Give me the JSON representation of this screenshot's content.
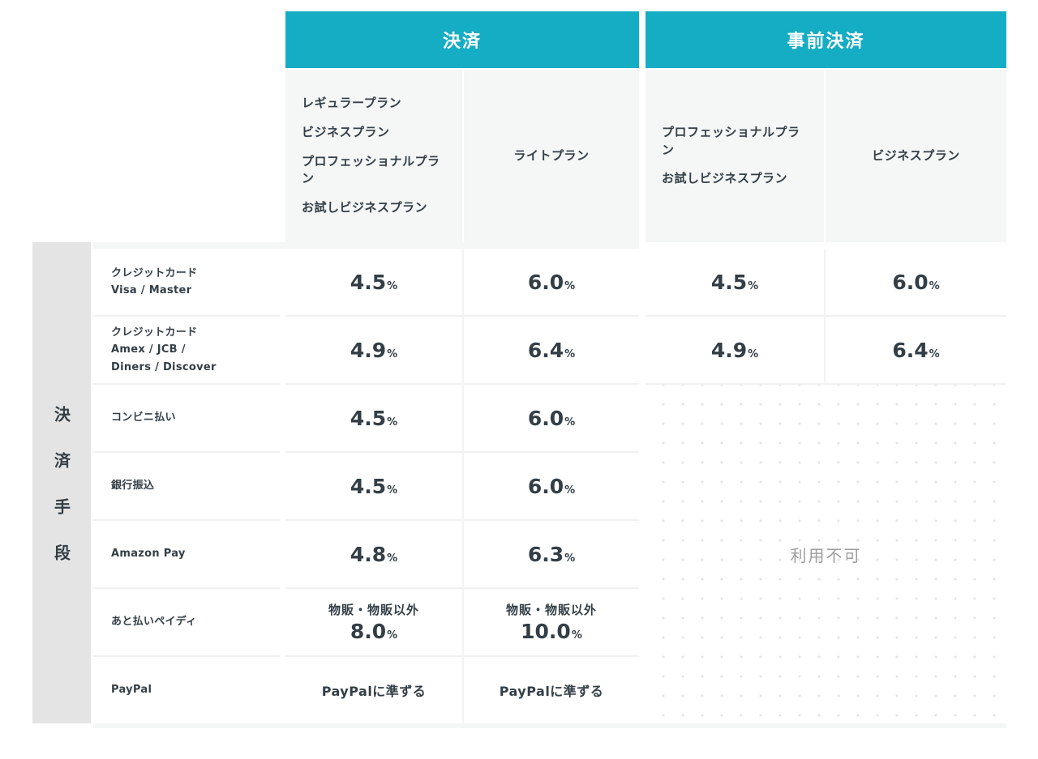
{
  "colors": {
    "accent": "#15adc4",
    "dark_text": "#333e46",
    "muted_text": "#9e9e9e",
    "axis_bg": "#e4e4e4",
    "subheader_bg": "#f5f6f6"
  },
  "group_headers": [
    {
      "label": "決済"
    },
    {
      "label": "事前決済"
    }
  ],
  "plan_columns": [
    {
      "lines": [
        "レギュラープラン",
        "ビジネスプラン",
        "プロフェッショナルプラン",
        "お試しビジネスプラン"
      ]
    },
    {
      "lines": [
        "ライトプラン"
      ]
    },
    {
      "lines": [
        "プロフェッショナルプラン",
        "お試しビジネスプラン"
      ]
    },
    {
      "lines": [
        "ビジネスプラン"
      ]
    }
  ],
  "row_group_label": "決済手段",
  "unavailable_label": "利用不可",
  "rows": [
    {
      "label_lines": [
        "クレジットカード",
        "Visa / Master"
      ],
      "cells": [
        {
          "value": "4.5",
          "unit": "%"
        },
        {
          "value": "6.0",
          "unit": "%"
        },
        {
          "value": "4.5",
          "unit": "%"
        },
        {
          "value": "6.0",
          "unit": "%"
        }
      ]
    },
    {
      "label_lines": [
        "クレジットカード",
        "Amex / JCB /",
        "Diners / Discover"
      ],
      "cells": [
        {
          "value": "4.9",
          "unit": "%"
        },
        {
          "value": "6.4",
          "unit": "%"
        },
        {
          "value": "4.9",
          "unit": "%"
        },
        {
          "value": "6.4",
          "unit": "%"
        }
      ]
    },
    {
      "label_lines": [
        "コンビニ払い"
      ],
      "cells": [
        {
          "value": "4.5",
          "unit": "%"
        },
        {
          "value": "6.0",
          "unit": "%"
        }
      ]
    },
    {
      "label_lines": [
        "銀行振込"
      ],
      "cells": [
        {
          "value": "4.5",
          "unit": "%"
        },
        {
          "value": "6.0",
          "unit": "%"
        }
      ]
    },
    {
      "label_lines": [
        "Amazon Pay"
      ],
      "cells": [
        {
          "value": "4.8",
          "unit": "%"
        },
        {
          "value": "6.3",
          "unit": "%"
        }
      ]
    },
    {
      "label_lines": [
        "あと払いペイディ"
      ],
      "cells": [
        {
          "note": "物販・物販以外",
          "value": "8.0",
          "unit": "%"
        },
        {
          "note": "物販・物販以外",
          "value": "10.0",
          "unit": "%"
        }
      ]
    },
    {
      "label_lines": [
        "PayPal"
      ],
      "cells": [
        {
          "text": "PayPalに準ずる"
        },
        {
          "text": "PayPalに準ずる"
        }
      ]
    }
  ]
}
